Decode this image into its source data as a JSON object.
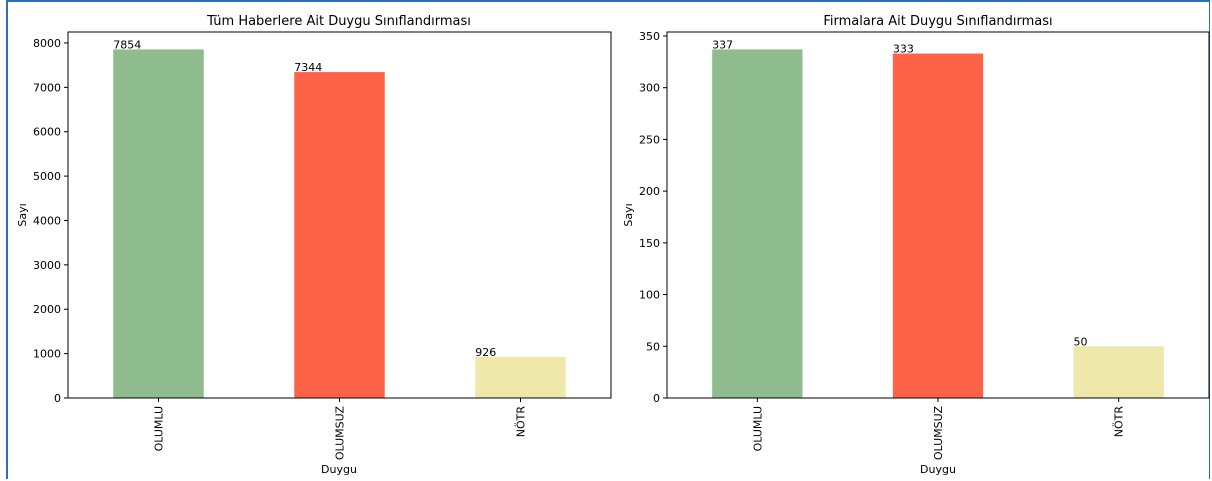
{
  "chart_data": [
    {
      "type": "bar",
      "title": "Tüm Haberlere Ait Duygu Sınıflandırması",
      "xlabel": "Duygu",
      "ylabel": "Sayı",
      "categories": [
        "OLUMLU",
        "OLUMSUZ",
        "NÖTR"
      ],
      "values": [
        7854,
        7344,
        926
      ],
      "value_labels": [
        "7854",
        "7344",
        "926"
      ],
      "colors": [
        "#8fbc8f",
        "#ff6347",
        "#eee8aa"
      ],
      "ylim": [
        0,
        8247
      ],
      "yticks": [
        0,
        1000,
        2000,
        3000,
        4000,
        5000,
        6000,
        7000,
        8000
      ],
      "ytick_labels": [
        "0",
        "1000",
        "2000",
        "3000",
        "4000",
        "5000",
        "6000",
        "7000",
        "8000"
      ],
      "grid": false,
      "legend": "none"
    },
    {
      "type": "bar",
      "title": "Firmalara Ait Duygu Sınıflandırması",
      "xlabel": "Duygu",
      "ylabel": "Sayı",
      "categories": [
        "OLUMLU",
        "OLUMSUZ",
        "NÖTR"
      ],
      "values": [
        337,
        333,
        50
      ],
      "value_labels": [
        "337",
        "333",
        "50"
      ],
      "colors": [
        "#8fbc8f",
        "#ff6347",
        "#eee8aa"
      ],
      "ylim": [
        0,
        353.85
      ],
      "yticks": [
        0,
        50,
        100,
        150,
        200,
        250,
        300,
        350
      ],
      "ytick_labels": [
        "0",
        "50",
        "100",
        "150",
        "200",
        "250",
        "300",
        "350"
      ],
      "grid": false,
      "legend": "none"
    }
  ]
}
